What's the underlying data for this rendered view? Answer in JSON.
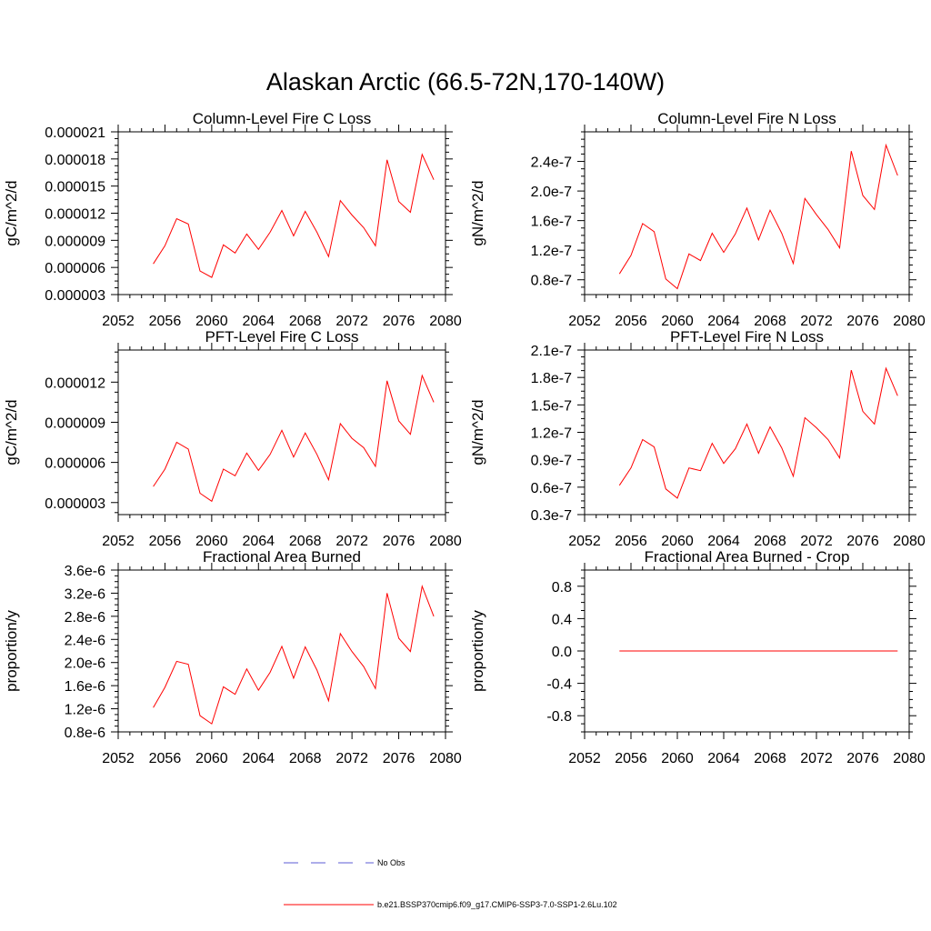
{
  "figure_title": "Alaskan Arctic (66.5-72N,170-140W)",
  "legend": [
    {
      "label": "No Obs",
      "color": "#5b5bd6",
      "dashed": true
    },
    {
      "label": "b.e21.BSSP370cmip6.f09_g17.CMIP6-SSP3-7.0-SSP1-2.6Lu.102",
      "color": "#ff0000",
      "dashed": false
    }
  ],
  "series_color": "#ff0000",
  "chart_data": [
    {
      "type": "line",
      "title": "Column-Level Fire C Loss",
      "ylabel": "gC/m^2/d",
      "xlim": [
        2052,
        2080
      ],
      "ylim": [
        3e-06,
        2.1e-05
      ],
      "x_ticks": [
        "2052",
        "2056",
        "2060",
        "2064",
        "2068",
        "2072",
        "2076",
        "2080"
      ],
      "y_ticks": [
        "0.000003",
        "0.000006",
        "0.000009",
        "0.000012",
        "0.000015",
        "0.000018",
        "0.000021"
      ],
      "y_tick_values": [
        3e-06,
        6e-06,
        9e-06,
        1.2e-05,
        1.5e-05,
        1.8e-05,
        2.1e-05
      ],
      "x": [
        2055,
        2056,
        2057,
        2058,
        2059,
        2060,
        2061,
        2062,
        2063,
        2064,
        2065,
        2066,
        2067,
        2068,
        2069,
        2070,
        2071,
        2072,
        2073,
        2074,
        2075,
        2076,
        2077,
        2078,
        2079
      ],
      "y": [
        6.4e-06,
        8.4e-06,
        1.14e-05,
        1.08e-05,
        5.6e-06,
        4.9e-06,
        8.5e-06,
        7.6e-06,
        9.7e-06,
        8e-06,
        9.9e-06,
        1.23e-05,
        9.5e-06,
        1.22e-05,
        9.9e-06,
        7.2e-06,
        1.34e-05,
        1.18e-05,
        1.04e-05,
        8.4e-06,
        1.79e-05,
        1.33e-05,
        1.21e-05,
        1.85e-05,
        1.57e-05
      ]
    },
    {
      "type": "line",
      "title": "Column-Level Fire N Loss",
      "ylabel": "gN/m^2/d",
      "xlim": [
        2052,
        2080
      ],
      "ylim": [
        6e-08,
        2.8e-07
      ],
      "x_ticks": [
        "2052",
        "2056",
        "2060",
        "2064",
        "2068",
        "2072",
        "2076",
        "2080"
      ],
      "y_ticks": [
        "0.8e-7",
        "1.2e-7",
        "1.6e-7",
        "2.0e-7",
        "2.4e-7"
      ],
      "y_tick_values": [
        8e-08,
        1.2e-07,
        1.6e-07,
        2e-07,
        2.4e-07
      ],
      "x": [
        2055,
        2056,
        2057,
        2058,
        2059,
        2060,
        2061,
        2062,
        2063,
        2064,
        2065,
        2066,
        2067,
        2068,
        2069,
        2070,
        2071,
        2072,
        2073,
        2074,
        2075,
        2076,
        2077,
        2078,
        2079
      ],
      "y": [
        8.8e-08,
        1.13e-07,
        1.56e-07,
        1.45e-07,
        8.1e-08,
        6.8e-08,
        1.15e-07,
        1.06e-07,
        1.43e-07,
        1.17e-07,
        1.42e-07,
        1.77e-07,
        1.34e-07,
        1.74e-07,
        1.43e-07,
        1.02e-07,
        1.9e-07,
        1.68e-07,
        1.48e-07,
        1.23e-07,
        2.54e-07,
        1.94e-07,
        1.75e-07,
        2.62e-07,
        2.21e-07
      ]
    },
    {
      "type": "line",
      "title": "PFT-Level Fire C Loss",
      "ylabel": "gC/m^2/d",
      "xlim": [
        2052,
        2080
      ],
      "ylim": [
        2.1e-06,
        1.44e-05
      ],
      "x_ticks": [
        "2052",
        "2056",
        "2060",
        "2064",
        "2068",
        "2072",
        "2076",
        "2080"
      ],
      "y_ticks": [
        "0.000003",
        "0.000006",
        "0.000009",
        "0.000012"
      ],
      "y_tick_values": [
        3e-06,
        6e-06,
        9e-06,
        1.2e-05
      ],
      "x": [
        2055,
        2056,
        2057,
        2058,
        2059,
        2060,
        2061,
        2062,
        2063,
        2064,
        2065,
        2066,
        2067,
        2068,
        2069,
        2070,
        2071,
        2072,
        2073,
        2074,
        2075,
        2076,
        2077,
        2078,
        2079
      ],
      "y": [
        4.2e-06,
        5.5e-06,
        7.5e-06,
        7e-06,
        3.7e-06,
        3.1e-06,
        5.5e-06,
        5e-06,
        6.7e-06,
        5.4e-06,
        6.6e-06,
        8.4e-06,
        6.4e-06,
        8.2e-06,
        6.6e-06,
        4.7e-06,
        8.9e-06,
        7.8e-06,
        7.1e-06,
        5.7e-06,
        1.21e-05,
        9.1e-06,
        8.1e-06,
        1.25e-05,
        1.05e-05
      ]
    },
    {
      "type": "line",
      "title": "PFT-Level Fire N Loss",
      "ylabel": "gN/m^2/d",
      "xlim": [
        2052,
        2080
      ],
      "ylim": [
        3e-08,
        2.1e-07
      ],
      "x_ticks": [
        "2052",
        "2056",
        "2060",
        "2064",
        "2068",
        "2072",
        "2076",
        "2080"
      ],
      "y_ticks": [
        "0.3e-7",
        "0.6e-7",
        "0.9e-7",
        "1.2e-7",
        "1.5e-7",
        "1.8e-7",
        "2.1e-7"
      ],
      "y_tick_values": [
        3e-08,
        6e-08,
        9e-08,
        1.2e-07,
        1.5e-07,
        1.8e-07,
        2.1e-07
      ],
      "x": [
        2055,
        2056,
        2057,
        2058,
        2059,
        2060,
        2061,
        2062,
        2063,
        2064,
        2065,
        2066,
        2067,
        2068,
        2069,
        2070,
        2071,
        2072,
        2073,
        2074,
        2075,
        2076,
        2077,
        2078,
        2079
      ],
      "y": [
        6.2e-08,
        8.1e-08,
        1.12e-07,
        1.04e-07,
        5.8e-08,
        4.8e-08,
        8.1e-08,
        7.8e-08,
        1.08e-07,
        8.6e-08,
        1.02e-07,
        1.29e-07,
        9.7e-08,
        1.26e-07,
        1.03e-07,
        7.2e-08,
        1.36e-07,
        1.25e-07,
        1.12e-07,
        9.2e-08,
        1.88e-07,
        1.43e-07,
        1.29e-07,
        1.9e-07,
        1.6e-07
      ]
    },
    {
      "type": "line",
      "title": "Fractional Area Burned",
      "ylabel": "proportion/y",
      "xlim": [
        2052,
        2080
      ],
      "ylim": [
        8e-07,
        3.6e-06
      ],
      "x_ticks": [
        "2052",
        "2056",
        "2060",
        "2064",
        "2068",
        "2072",
        "2076",
        "2080"
      ],
      "y_ticks": [
        "0.8e-6",
        "1.2e-6",
        "1.6e-6",
        "2.0e-6",
        "2.4e-6",
        "2.8e-6",
        "3.2e-6",
        "3.6e-6"
      ],
      "y_tick_values": [
        8e-07,
        1.2e-06,
        1.6e-06,
        2e-06,
        2.4e-06,
        2.8e-06,
        3.2e-06,
        3.6e-06
      ],
      "x": [
        2055,
        2056,
        2057,
        2058,
        2059,
        2060,
        2061,
        2062,
        2063,
        2064,
        2065,
        2066,
        2067,
        2068,
        2069,
        2070,
        2071,
        2072,
        2073,
        2074,
        2075,
        2076,
        2077,
        2078,
        2079
      ],
      "y": [
        1.22e-06,
        1.57e-06,
        2.02e-06,
        1.97e-06,
        1.08e-06,
        9.4e-07,
        1.58e-06,
        1.45e-06,
        1.89e-06,
        1.52e-06,
        1.83e-06,
        2.28e-06,
        1.73e-06,
        2.27e-06,
        1.87e-06,
        1.34e-06,
        2.5e-06,
        2.19e-06,
        1.93e-06,
        1.55e-06,
        3.2e-06,
        2.42e-06,
        2.19e-06,
        3.32e-06,
        2.8e-06
      ]
    },
    {
      "type": "line",
      "title": "Fractional Area Burned - Crop",
      "ylabel": "proportion/y",
      "xlim": [
        2052,
        2080
      ],
      "ylim": [
        -1.0,
        1.0
      ],
      "x_ticks": [
        "2052",
        "2056",
        "2060",
        "2064",
        "2068",
        "2072",
        "2076",
        "2080"
      ],
      "y_ticks": [
        "-0.8",
        "-0.4",
        "0.0",
        "0.4",
        "0.8"
      ],
      "y_tick_values": [
        -0.8,
        -0.4,
        0.0,
        0.4,
        0.8
      ],
      "x": [
        2055,
        2056,
        2057,
        2058,
        2059,
        2060,
        2061,
        2062,
        2063,
        2064,
        2065,
        2066,
        2067,
        2068,
        2069,
        2070,
        2071,
        2072,
        2073,
        2074,
        2075,
        2076,
        2077,
        2078,
        2079
      ],
      "y": [
        0,
        0,
        0,
        0,
        0,
        0,
        0,
        0,
        0,
        0,
        0,
        0,
        0,
        0,
        0,
        0,
        0,
        0,
        0,
        0,
        0,
        0,
        0,
        0,
        0
      ]
    }
  ]
}
